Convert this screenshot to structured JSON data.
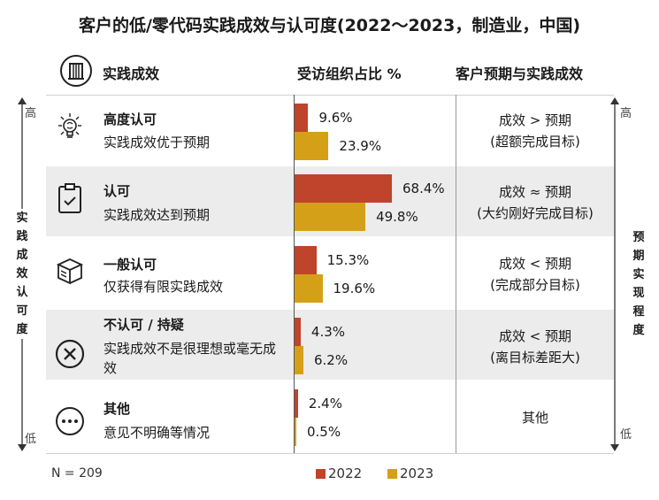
{
  "title": "客户的低/零代码实践成效与认可度(2022～2023，制造业，中国)",
  "headers": {
    "practice": "实践成效",
    "share": "受访组织占比 %",
    "expectation": "客户预期与实践成效"
  },
  "left_axis": {
    "label": "实践成效认可度",
    "high": "高",
    "low": "低"
  },
  "right_axis": {
    "label": "预期实现程度",
    "high": "高",
    "low": "低"
  },
  "rows": [
    {
      "title": "高度认可",
      "desc": "实践成效优于预期",
      "icon": "lightbulb-brain-icon",
      "expect_line1": "成效 > 预期",
      "expect_line2": "(超额完成目标)",
      "label2022": "9.6%",
      "label2023": "23.9%"
    },
    {
      "title": "认可",
      "desc": "实践成效达到预期",
      "icon": "clipboard-check-icon",
      "expect_line1": "成效 ≈ 预期",
      "expect_line2": "(大约刚好完成目标)",
      "label2022": "68.4%",
      "label2023": "49.8%"
    },
    {
      "title": "一般认可",
      "desc": "仅获得有限实践成效",
      "icon": "open-box-icon",
      "expect_line1": "成效 < 预期",
      "expect_line2": "(完成部分目标)",
      "label2022": "15.3%",
      "label2023": "19.6%"
    },
    {
      "title": "不认可 / 持疑",
      "desc": "实践成效不是很理想或毫无成效",
      "icon": "x-circle-icon",
      "expect_line1": "成效 < 预期",
      "expect_line2": "(离目标差距大)",
      "label2022": "4.3%",
      "label2023": "6.2%"
    },
    {
      "title": "其他",
      "desc": "意见不明确等情况",
      "icon": "ellipsis-circle-icon",
      "expect_line1": "其他",
      "expect_line2": "",
      "label2022": "2.4%",
      "label2023": "0.5%"
    }
  ],
  "note": "N = 209",
  "colors": {
    "c2022": "#c0432b",
    "c2023": "#d4a017"
  },
  "chart_data": {
    "type": "bar",
    "orientation": "horizontal",
    "categories": [
      "高度认可",
      "认可",
      "一般认可",
      "不认可 / 持疑",
      "其他"
    ],
    "series": [
      {
        "name": "2022",
        "values": [
          9.6,
          68.4,
          15.3,
          4.3,
          2.4
        ]
      },
      {
        "name": "2023",
        "values": [
          23.9,
          49.8,
          19.6,
          6.2,
          0.5
        ]
      }
    ],
    "legend": "bottom"
  }
}
